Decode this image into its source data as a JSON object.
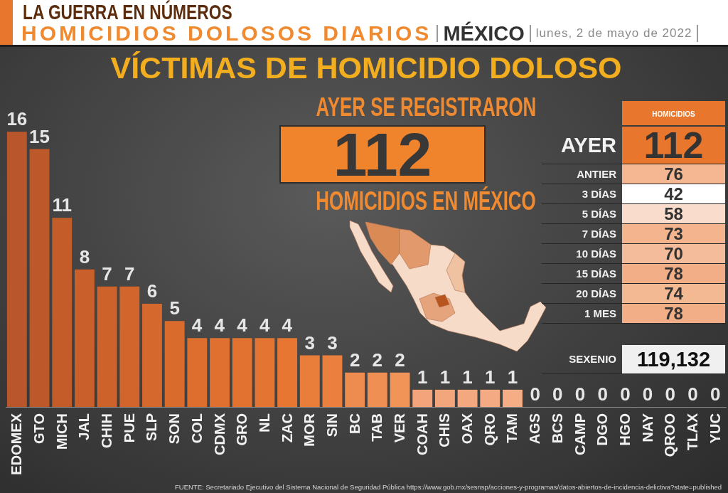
{
  "chart_data": [
    {
      "type": "other",
      "title": "LA GUERRA EN NÚMEROS",
      "annotations": [
        "HOMICIDIOS DOLOSOS DIARIOS",
        "MÉXICO",
        "lunes, 2 de mayo de 2022"
      ]
    },
    {
      "type": "bar",
      "title": "VÍCTIMAS DE HOMICIDIO DOLOSO",
      "categories": [
        "EDOMEX",
        "GTO",
        "MICH",
        "JAL",
        "CHIH",
        "PUE",
        "SLP",
        "SON",
        "COL",
        "CDMX",
        "GRO",
        "NL",
        "ZAC",
        "MOR",
        "SIN",
        "BC",
        "TAB",
        "VER",
        "COAH",
        "CHIS",
        "OAX",
        "QRO",
        "TAM",
        "AGS",
        "BCS",
        "CAMP",
        "DGO",
        "HGO",
        "NAY",
        "QROO",
        "TLAX",
        "YUC"
      ],
      "values": [
        16,
        15,
        11,
        8,
        7,
        7,
        6,
        5,
        4,
        4,
        4,
        4,
        4,
        3,
        3,
        2,
        2,
        2,
        1,
        1,
        1,
        1,
        1,
        0,
        0,
        0,
        0,
        0,
        0,
        0,
        0,
        0
      ],
      "colors": [
        "#b9562c",
        "#bd582b",
        "#c45c2a",
        "#c9602b",
        "#cd632b",
        "#d1652b",
        "#d5682c",
        "#d96b2d",
        "#de6e2e",
        "#e0702f",
        "#e27230",
        "#e47431",
        "#e67632",
        "#e97d3a",
        "#eb803e",
        "#ee8b4e",
        "#ef8f53",
        "#f09458",
        "#f3a47a",
        "#f3a67c",
        "#f4a87f",
        "#f4aa82",
        "#f5ad86",
        "#f5b08a",
        "#f5b08a",
        "#f5b08a",
        "#f5b08a",
        "#f5b08a",
        "#f5b08a",
        "#f5b08a",
        "#f5b08a",
        "#f5b08a"
      ],
      "data_labels": true,
      "annotations": [
        "FUENTE: Secretariado Ejecutivo del Sistema Nacional de Seguridad Pública https://www.gob.mx/sesnsp/acciones-y-programas/datos-abiertos-de-incidencia-delictiva?state=published"
      ]
    },
    {
      "type": "other",
      "title": "AYER SE REGISTRARON",
      "values": [
        112
      ],
      "data_labels": true,
      "annotations": [
        "HOMICIDIOS EN MÉXICO"
      ]
    },
    {
      "type": "other",
      "title": "HOMICIDIOS",
      "categories": [
        "AYER",
        "ANTIER",
        "3 DÍAS",
        "5 DÍAS",
        "7 DÍAS",
        "10 DÍAS",
        "15 DÍAS",
        "20 DÍAS",
        "1 MES",
        "SEXENIO"
      ],
      "value_labels": [
        "112",
        "76",
        "42",
        "58",
        "73",
        "70",
        "78",
        "74",
        "78",
        "119,132"
      ],
      "colors": [
        "#e8762c",
        "#f4b791",
        "#ffffff",
        "#f9dccb",
        "#f3b48e",
        "#f4bc9a",
        "#f2ae86",
        "#f3b993",
        "#f2ae86",
        "#f0f0f0"
      ]
    }
  ]
}
